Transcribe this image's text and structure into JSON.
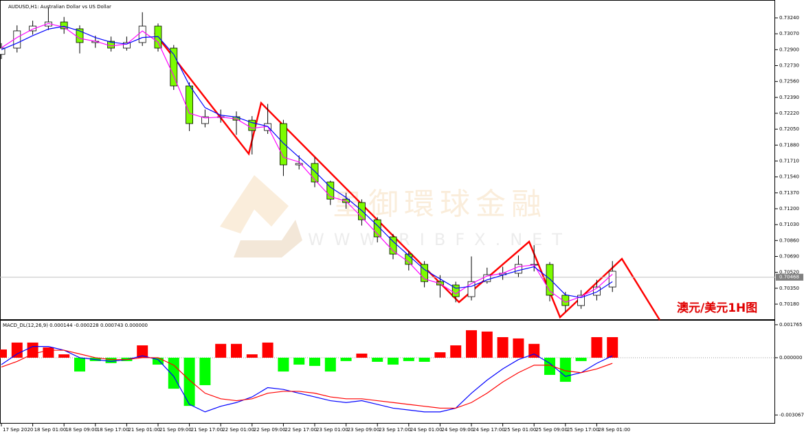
{
  "title": "AUDUSD,H1: Australian Dollar vs US Dollar",
  "watermark": {
    "title": "皇御環球金融",
    "url": "WWW.RIBFX.NET"
  },
  "chart_data": [
    {
      "type": "candlestick",
      "annotation": "澳元/美元1H图",
      "x": [
        0,
        4,
        8,
        12,
        16,
        20,
        24,
        28,
        32,
        36,
        40,
        44,
        48,
        52,
        56,
        60,
        64,
        68,
        72,
        76,
        80,
        84,
        88,
        92,
        96,
        100,
        104,
        108,
        112,
        116,
        120,
        124,
        128,
        132,
        136,
        140,
        144,
        148,
        152,
        156
      ],
      "open": [
        0.7285,
        0.72917,
        0.73101,
        0.73152,
        0.73196,
        0.73123,
        0.72976,
        0.7299,
        0.72917,
        0.72976,
        0.73152,
        0.72917,
        0.72513,
        0.7211,
        0.72183,
        0.72183,
        0.72146,
        0.72036,
        0.7211,
        0.71669,
        0.71684,
        0.71486,
        0.71302,
        0.71266,
        0.71082,
        0.70899,
        0.70715,
        0.70605,
        0.70421,
        0.70385,
        0.7026,
        0.70421,
        0.70495,
        0.7051,
        0.70605,
        0.70605,
        0.70275,
        0.70165,
        0.70275,
        0.70363
      ],
      "high": [
        0.7297,
        0.7316,
        0.7321,
        0.7335,
        0.7325,
        0.7316,
        0.7305,
        0.7304,
        0.7304,
        0.733,
        0.7318,
        0.7295,
        0.7255,
        0.7226,
        0.7226,
        0.7224,
        0.7219,
        0.7232,
        0.7215,
        0.7177,
        0.7175,
        0.715,
        0.7137,
        0.713,
        0.7111,
        0.7093,
        0.7075,
        0.7064,
        0.7049,
        0.7042,
        0.7069,
        0.7057,
        0.7058,
        0.707,
        0.7081,
        0.7063,
        0.7031,
        0.7033,
        0.7044,
        0.7064
      ],
      "low": [
        0.728,
        0.7287,
        0.7306,
        0.7311,
        0.7307,
        0.7286,
        0.7292,
        0.7288,
        0.7289,
        0.7294,
        0.7288,
        0.7247,
        0.7203,
        0.7207,
        0.7212,
        0.7199,
        0.7178,
        0.72,
        0.7155,
        0.7162,
        0.7143,
        0.7124,
        0.712,
        0.7102,
        0.7084,
        0.7066,
        0.7054,
        0.7036,
        0.7025,
        0.702,
        0.7022,
        0.704,
        0.7044,
        0.7047,
        0.7053,
        0.7021,
        0.701,
        0.7013,
        0.7022,
        0.7031
      ],
      "close": [
        0.72917,
        0.73101,
        0.73152,
        0.73196,
        0.73123,
        0.72976,
        0.7299,
        0.72917,
        0.72976,
        0.73152,
        0.72917,
        0.72513,
        0.7211,
        0.72183,
        0.72183,
        0.72146,
        0.72036,
        0.7211,
        0.71669,
        0.71684,
        0.71486,
        0.71302,
        0.71266,
        0.71082,
        0.70899,
        0.70715,
        0.70605,
        0.70421,
        0.70385,
        0.7026,
        0.70421,
        0.70495,
        0.7051,
        0.70605,
        0.70605,
        0.70275,
        0.70165,
        0.70275,
        0.70363,
        0.70532
      ],
      "up_color": "#ffffff",
      "down_color": "#7cfc00",
      "series": [
        {
          "color": "#ff00ff",
          "values": [
            0.7292,
            0.7303,
            0.7312,
            0.7318,
            0.7314,
            0.7302,
            0.7299,
            0.7294,
            0.7296,
            0.731,
            0.7298,
            0.7262,
            0.7222,
            0.7217,
            0.7218,
            0.7216,
            0.7206,
            0.7208,
            0.7175,
            0.717,
            0.7151,
            0.7133,
            0.7128,
            0.7111,
            0.7093,
            0.7075,
            0.7063,
            0.7045,
            0.704,
            0.7029,
            0.704,
            0.7048,
            0.7051,
            0.7058,
            0.706,
            0.7032,
            0.702,
            0.7026,
            0.7035,
            0.705
          ]
        },
        {
          "color": "#0000ff",
          "values": [
            0.729,
            0.7297,
            0.7305,
            0.7312,
            0.7315,
            0.731,
            0.7303,
            0.7298,
            0.7296,
            0.7303,
            0.7304,
            0.7285,
            0.7252,
            0.7228,
            0.722,
            0.7218,
            0.7212,
            0.7208,
            0.719,
            0.7175,
            0.716,
            0.7143,
            0.7132,
            0.7118,
            0.7102,
            0.7085,
            0.707,
            0.7055,
            0.7045,
            0.7035,
            0.7037,
            0.7044,
            0.7049,
            0.7054,
            0.7058,
            0.7045,
            0.7028,
            0.7025,
            0.7031,
            0.7042
          ]
        }
      ],
      "price_line": 0.70468,
      "xlim": [
        -0.35,
        197.54
      ],
      "ylim": [
        0.70011,
        0.73431
      ],
      "yticks": [
        {
          "value": 0.7324,
          "label": "0.73240"
        },
        {
          "value": 0.7307,
          "label": "0.73070"
        },
        {
          "value": 0.729,
          "label": "0.72900"
        },
        {
          "value": 0.7273,
          "label": "0.72730"
        },
        {
          "value": 0.7256,
          "label": "0.72560"
        },
        {
          "value": 0.7239,
          "label": "0.72390"
        },
        {
          "value": 0.7222,
          "label": "0.72220"
        },
        {
          "value": 0.7205,
          "label": "0.72050"
        },
        {
          "value": 0.7188,
          "label": "0.71880"
        },
        {
          "value": 0.7171,
          "label": "0.71710"
        },
        {
          "value": 0.7154,
          "label": "0.71540"
        },
        {
          "value": 0.7137,
          "label": "0.71370"
        },
        {
          "value": 0.712,
          "label": "0.71200"
        },
        {
          "value": 0.7103,
          "label": "0.71030"
        },
        {
          "value": 0.7086,
          "label": "0.70860"
        },
        {
          "value": 0.7069,
          "label": "0.70690"
        },
        {
          "value": 0.7052,
          "label": "0.70520"
        },
        {
          "value": 0.7035,
          "label": "0.70350"
        },
        {
          "value": 0.7018,
          "label": "0.70180"
        }
      ]
    },
    {
      "type": "macd",
      "title": "MACD_DL(12,26,9) 0.000144 -0.000228 0.000743 0.000000",
      "x": [
        0,
        4,
        8,
        12,
        16,
        20,
        24,
        28,
        32,
        36,
        40,
        44,
        48,
        52,
        56,
        60,
        64,
        68,
        72,
        76,
        80,
        84,
        88,
        92,
        96,
        100,
        104,
        108,
        112,
        116,
        120,
        124,
        128,
        132,
        136,
        140,
        144,
        148,
        152,
        156
      ],
      "histogram": [
        0.00044,
        0.00081,
        0.00081,
        0.00055,
        0.00018,
        -0.00074,
        -0.00018,
        -0.00029,
        -0.00018,
        0.00066,
        -0.00037,
        -0.00166,
        -0.00258,
        -0.00147,
        0.00074,
        0.00074,
        0.00018,
        0.00081,
        -0.00074,
        -0.00037,
        -0.00044,
        -0.00074,
        -0.00018,
        0.00022,
        -0.00022,
        -0.00037,
        -0.00018,
        -0.00022,
        0.00029,
        0.00066,
        0.00147,
        0.0014,
        0.0011,
        0.00103,
        0.00074,
        -0.00092,
        -0.00129,
        -0.00018,
        0.0011,
        0.0011
      ],
      "up_color": "#ff0000",
      "down_color": "#00ff00",
      "series": [
        {
          "color": "#0000ff",
          "values": [
            -0.00037,
            0.0002,
            0.0006,
            0.0006,
            0.0004,
            0,
            -0.0001,
            -0.0002,
            -0.0001,
            0.0001,
            -0.0001,
            -0.001,
            -0.0025,
            -0.0029,
            -0.0026,
            -0.0024,
            -0.0021,
            -0.0016,
            -0.0017,
            -0.0019,
            -0.0021,
            -0.0023,
            -0.0024,
            -0.0023,
            -0.0025,
            -0.0027,
            -0.0028,
            -0.0029,
            -0.0029,
            -0.0027,
            -0.0019,
            -0.0012,
            -0.0006,
            -0.0001,
            0.0002,
            -0.0003,
            -0.001,
            -0.0008,
            -0.0003,
            0.0001
          ]
        },
        {
          "color": "#ff0000",
          "values": [
            -0.0005,
            -0.0002,
            0.0002,
            0.0004,
            0.0004,
            0.0002,
            0,
            -0.0001,
            -0.0001,
            0,
            0,
            -0.0004,
            -0.0012,
            -0.0019,
            -0.0022,
            -0.0023,
            -0.0022,
            -0.0019,
            -0.0018,
            -0.0018,
            -0.0019,
            -0.0021,
            -0.0022,
            -0.0022,
            -0.0023,
            -0.0024,
            -0.0025,
            -0.0026,
            -0.0027,
            -0.0027,
            -0.0024,
            -0.0019,
            -0.0013,
            -0.0008,
            -0.0004,
            -0.0004,
            -0.0007,
            -0.0008,
            -0.0006,
            -0.0003
          ]
        }
      ],
      "zero_line": true,
      "xlim": [
        -0.35,
        197.54
      ],
      "ylim": [
        -0.00353,
        0.00202
      ],
      "yticks": [
        0.001765,
        {
          "value": 0,
          "label": "0.000000"
        },
        -0.003067
      ],
      "xticks": [
        {
          "value": 0,
          "label": "17 Sep 2020"
        },
        {
          "value": 8,
          "label": "18 Sep 01:00"
        },
        {
          "value": 16,
          "label": "18 Sep 09:00"
        },
        {
          "value": 24,
          "label": "18 Sep 17:00"
        },
        {
          "value": 32,
          "label": "21 Sep 01:00"
        },
        {
          "value": 40,
          "label": "21 Sep 09:00"
        },
        {
          "value": 48,
          "label": "21 Sep 17:00"
        },
        {
          "value": 56,
          "label": "22 Sep 01:00"
        },
        {
          "value": 64,
          "label": "22 Sep 09:00"
        },
        {
          "value": 72,
          "label": "22 Sep 17:00"
        },
        {
          "value": 80,
          "label": "23 Sep 01:00"
        },
        {
          "value": 88,
          "label": "23 Sep 09:00"
        },
        {
          "value": 96,
          "label": "23 Sep 17:00"
        },
        {
          "value": 104,
          "label": "24 Sep 01:00"
        },
        {
          "value": 112,
          "label": "24 Sep 09:00"
        },
        {
          "value": 120,
          "label": "24 Sep 17:00"
        },
        {
          "value": 128,
          "label": "25 Sep 01:00"
        },
        {
          "value": 136,
          "label": "25 Sep 09:00"
        },
        {
          "value": 144,
          "label": "25 Sep 17:00"
        },
        {
          "value": 152,
          "label": "28 Sep 01:00"
        }
      ]
    }
  ]
}
